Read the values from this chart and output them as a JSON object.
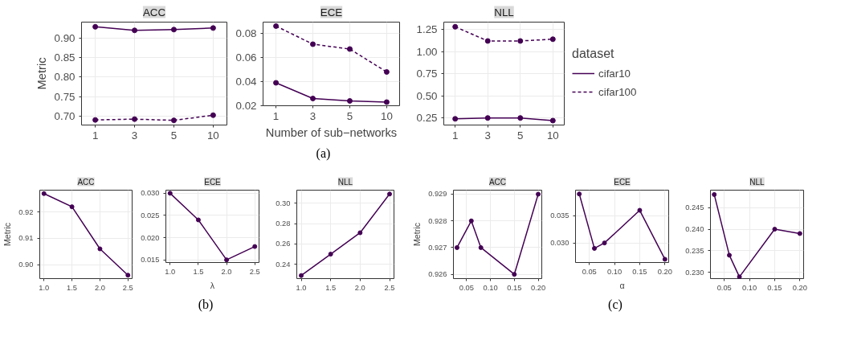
{
  "chart_data": [
    {
      "type": "line",
      "title": "ACC",
      "ylabel": "Metric",
      "categories": [
        "1",
        "3",
        "5",
        "10"
      ],
      "ylim": [
        0.678,
        0.94
      ],
      "yticks": [
        {
          "value": 0.7,
          "label": "0.70"
        },
        0.75,
        {
          "value": 0.8,
          "label": "0.80"
        },
        0.85,
        {
          "value": 0.9,
          "label": "0.90"
        }
      ],
      "grid": true,
      "marker": "circle",
      "legend": false,
      "series": [
        {
          "color": "#440154",
          "line_style": "solid",
          "values": [
            0.928,
            0.919,
            0.921,
            0.925
          ]
        },
        {
          "color": "#440154",
          "line_style": "dashed",
          "values": [
            0.691,
            0.693,
            0.69,
            0.703
          ]
        }
      ]
    },
    {
      "type": "line",
      "title": "ECE",
      "xlabel": "Number of sub−networks",
      "annotations": [
        "(a)"
      ],
      "categories": [
        "1",
        "3",
        "5",
        "10"
      ],
      "ylim": [
        0.02,
        0.0893
      ],
      "yticks": [
        0.02,
        0.04,
        0.06,
        0.08
      ],
      "grid": true,
      "marker": "circle",
      "legend": false,
      "series": [
        {
          "color": "#440154",
          "line_style": "solid",
          "values": [
            0.039,
            0.026,
            0.024,
            0.023
          ]
        },
        {
          "color": "#440154",
          "line_style": "dashed",
          "values": [
            0.086,
            0.071,
            0.067,
            0.048
          ]
        }
      ]
    },
    {
      "type": "line",
      "title": "NLL",
      "legend_title": "dataset",
      "categories": [
        "1",
        "3",
        "5",
        "10"
      ],
      "ylim": [
        0.17,
        1.333
      ],
      "yticks": [
        0.25,
        {
          "value": 0.5,
          "label": "0.50"
        },
        0.75,
        {
          "value": 1.0,
          "label": "1.00"
        },
        1.25
      ],
      "grid": true,
      "marker": "circle",
      "legend": "right",
      "series": [
        {
          "name": "cifar10",
          "color": "#440154",
          "line_style": "solid",
          "values": [
            0.24,
            0.25,
            0.25,
            0.22
          ]
        },
        {
          "name": "cifar100",
          "color": "#440154",
          "line_style": "dashed",
          "values": [
            1.28,
            1.12,
            1.12,
            1.14
          ]
        }
      ]
    },
    {
      "type": "line",
      "title": "ACC",
      "ylabel": "Metric",
      "x": [
        1.0,
        1.5,
        2.0,
        2.5
      ],
      "xlim": [
        0.925,
        2.575
      ],
      "xticks": [
        {
          "value": 1.0,
          "label": "1.0"
        },
        1.5,
        {
          "value": 2.0,
          "label": "2.0"
        },
        2.5
      ],
      "ylim": [
        0.8947,
        0.9283
      ],
      "yticks": [
        {
          "value": 0.9,
          "label": "0.90"
        },
        0.91,
        0.92
      ],
      "grid": true,
      "marker": "circle",
      "series": [
        {
          "color": "#440154",
          "values": [
            0.927,
            0.922,
            0.906,
            0.896
          ]
        }
      ]
    },
    {
      "type": "line",
      "title": "ECE",
      "xlabel": "λ",
      "annotations": [
        "(b)"
      ],
      "x": [
        1.0,
        1.5,
        2.0,
        2.5
      ],
      "xlim": [
        0.925,
        2.575
      ],
      "xticks": [
        {
          "value": 1.0,
          "label": "1.0"
        },
        1.5,
        {
          "value": 2.0,
          "label": "2.0"
        },
        2.5
      ],
      "ylim": [
        0.0144,
        0.0307
      ],
      "yticks": [
        0.015,
        {
          "value": 0.02,
          "label": "0.020"
        },
        0.025,
        {
          "value": 0.03,
          "label": "0.030"
        }
      ],
      "grid": true,
      "marker": "circle",
      "series": [
        {
          "color": "#440154",
          "values": [
            0.03,
            0.024,
            0.015,
            0.018
          ]
        }
      ]
    },
    {
      "type": "line",
      "title": "NLL",
      "x": [
        1.0,
        1.5,
        2.0,
        2.5
      ],
      "xlim": [
        0.925,
        2.575
      ],
      "xticks": [
        {
          "value": 1.0,
          "label": "1.0"
        },
        1.5,
        {
          "value": 2.0,
          "label": "2.0"
        },
        2.5
      ],
      "ylim": [
        0.226,
        0.3128
      ],
      "yticks": [
        0.24,
        0.26,
        0.28,
        {
          "value": 0.3,
          "label": "0.30"
        }
      ],
      "grid": true,
      "marker": "circle",
      "series": [
        {
          "color": "#440154",
          "values": [
            0.229,
            0.25,
            0.271,
            0.309
          ]
        }
      ]
    },
    {
      "type": "line",
      "title": "ACC",
      "ylabel": "Metric",
      "x": [
        0.03,
        0.06,
        0.08,
        0.15,
        0.2
      ],
      "xlim": [
        0.0225,
        0.2075
      ],
      "xticks": [
        0.05,
        {
          "value": 0.1,
          "label": "0.10"
        },
        0.15,
        {
          "value": 0.2,
          "label": "0.20"
        }
      ],
      "ylim": [
        0.92584,
        0.92915
      ],
      "yticks": [
        0.926,
        0.927,
        0.928,
        0.929
      ],
      "grid": true,
      "marker": "circle",
      "series": [
        {
          "color": "#440154",
          "values": [
            0.927,
            0.928,
            0.927,
            0.926,
            0.929
          ]
        }
      ]
    },
    {
      "type": "line",
      "title": "ECE",
      "xlabel": "α",
      "annotations": [
        "(c)"
      ],
      "x": [
        0.03,
        0.06,
        0.08,
        0.15,
        0.2
      ],
      "xlim": [
        0.0225,
        0.2075
      ],
      "xticks": [
        0.05,
        {
          "value": 0.1,
          "label": "0.10"
        },
        0.15,
        {
          "value": 0.2,
          "label": "0.20"
        }
      ],
      "ylim": [
        0.0264,
        0.0397
      ],
      "yticks": [
        {
          "value": 0.03,
          "label": "0.030"
        },
        0.035
      ],
      "grid": true,
      "marker": "circle",
      "series": [
        {
          "color": "#440154",
          "values": [
            0.039,
            0.029,
            0.03,
            0.036,
            0.027
          ]
        }
      ]
    },
    {
      "type": "line",
      "title": "NLL",
      "x": [
        0.03,
        0.06,
        0.08,
        0.15,
        0.2
      ],
      "xlim": [
        0.0225,
        0.2075
      ],
      "xticks": [
        0.05,
        {
          "value": 0.1,
          "label": "0.10"
        },
        0.15,
        {
          "value": 0.2,
          "label": "0.20"
        }
      ],
      "ylim": [
        0.2286,
        0.249
      ],
      "yticks": [
        {
          "value": 0.23,
          "label": "0.230"
        },
        0.235,
        {
          "value": 0.24,
          "label": "0.240"
        },
        0.245
      ],
      "grid": true,
      "marker": "circle",
      "series": [
        {
          "color": "#440154",
          "values": [
            0.248,
            0.234,
            0.229,
            0.24,
            0.239
          ]
        }
      ]
    }
  ]
}
